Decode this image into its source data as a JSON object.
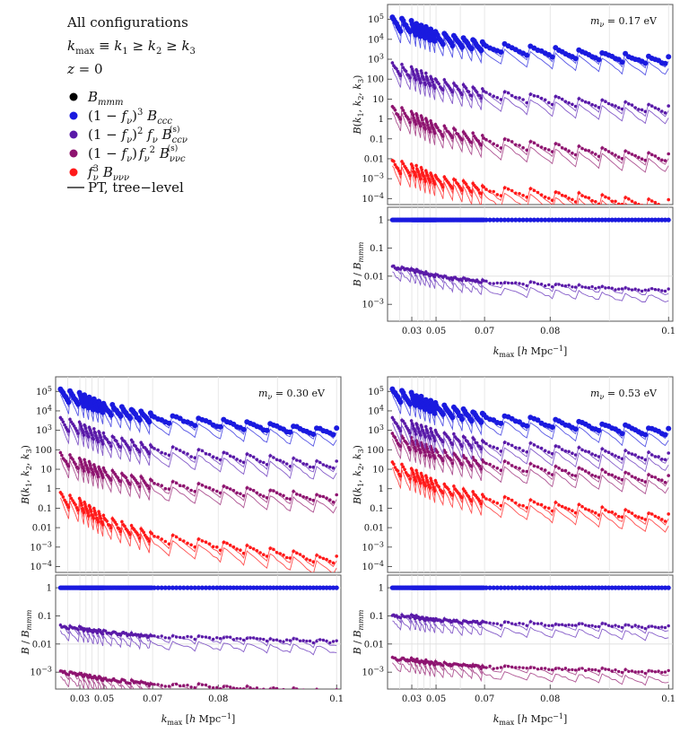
{
  "legend": {
    "header_lines": [
      "All configurations",
      "k_max ≡ k1 ≥ k2 ≥ k3",
      "z = 0"
    ],
    "entries": [
      {
        "label": "B_mmm",
        "color": "#000000",
        "kind": "dot"
      },
      {
        "label": "(1 − fν)^3 B_ccc",
        "color": "#1a1adf",
        "kind": "dot"
      },
      {
        "label": "(1 − fν)^2 fν B^(s)_ccν",
        "color": "#5a1aa8",
        "kind": "dot"
      },
      {
        "label": "(1 − fν) fν^2 B^(s)_ννc",
        "color": "#8e1470",
        "kind": "dot"
      },
      {
        "label": "fν^3 B_ννν",
        "color": "#ff1a1a",
        "kind": "dot"
      },
      {
        "label": "PT, tree−level",
        "color": "#000000",
        "kind": "line"
      }
    ]
  },
  "chart_data": [
    {
      "type": "scatter",
      "panel": "top-right",
      "annotation": "mν = 0.17 eV",
      "ylabel_top": "B(k1, k2, k3)",
      "ylabel_bottom": "B / B_mmm",
      "xlabel": "k_max [h Mpc⁻¹]",
      "xticks": [
        0.03,
        0.05,
        0.07,
        0.08,
        0.1
      ],
      "x_range": [
        0.02,
        0.1
      ],
      "y_top_ticks": [
        "10^5",
        "10^4",
        "10^3",
        "100",
        "10",
        "1",
        "0.1",
        "0.01",
        "10^-3",
        "10^-4"
      ],
      "y_bottom_ticks": [
        "1",
        "0.1",
        "0.01",
        "10^-3"
      ],
      "series_levels": {
        "ccc": [
          60000,
          800
        ],
        "ccv": [
          300,
          3
        ],
        "vvc": [
          2,
          0.01
        ],
        "vvv": [
          0.004,
          5e-05
        ]
      },
      "ratio_levels": {
        "ccc": 1.0,
        "ccv": [
          0.02,
          0.003
        ]
      }
    },
    {
      "type": "scatter",
      "panel": "bottom-left",
      "annotation": "mν = 0.30 eV",
      "ylabel_top": "B(k1, k2, k3)",
      "ylabel_bottom": "B / B_mmm",
      "xlabel": "k_max [h Mpc⁻¹]",
      "xticks": [
        0.03,
        0.05,
        0.07,
        0.08,
        0.1
      ],
      "x_range": [
        0.02,
        0.1
      ],
      "y_top_ticks": [
        "10^5",
        "10^4",
        "10^3",
        "100",
        "10",
        "1",
        "0.1",
        "0.01",
        "10^-3",
        "10^-4"
      ],
      "y_bottom_ticks": [
        "1",
        "0.1",
        "0.01",
        "10^-3"
      ],
      "series_levels": {
        "ccc": [
          60000,
          800
        ],
        "ccv": [
          2000,
          15
        ],
        "vvc": [
          30,
          0.3
        ],
        "vvv": [
          0.3,
          0.0002
        ]
      },
      "ratio_levels": {
        "ccc": 1.0,
        "ccv": [
          0.04,
          0.012
        ],
        "vvc": [
          0.001,
          0.0002
        ]
      }
    },
    {
      "type": "scatter",
      "panel": "bottom-right",
      "annotation": "mν = 0.53 eV",
      "ylabel_top": "B(k1, k2, k3)",
      "ylabel_bottom": "B / B_mmm",
      "xlabel": "k_max [h Mpc⁻¹]",
      "xticks": [
        0.03,
        0.05,
        0.07,
        0.08,
        0.1
      ],
      "x_range": [
        0.02,
        0.1
      ],
      "y_top_ticks": [
        "10^5",
        "10^4",
        "10^3",
        "100",
        "10",
        "1",
        "0.1",
        "0.01",
        "10^-3",
        "10^-4"
      ],
      "y_bottom_ticks": [
        "1",
        "0.1",
        "0.01",
        "10^-3"
      ],
      "series_levels": {
        "ccc": [
          60000,
          800
        ],
        "ccv": [
          2000,
          40
        ],
        "vvc": [
          300,
          3
        ],
        "vvv": [
          10,
          0.03
        ]
      },
      "ratio_levels": {
        "ccc": 1.0,
        "ccv": [
          0.1,
          0.04
        ],
        "vvc": [
          0.003,
          0.001
        ]
      }
    }
  ]
}
